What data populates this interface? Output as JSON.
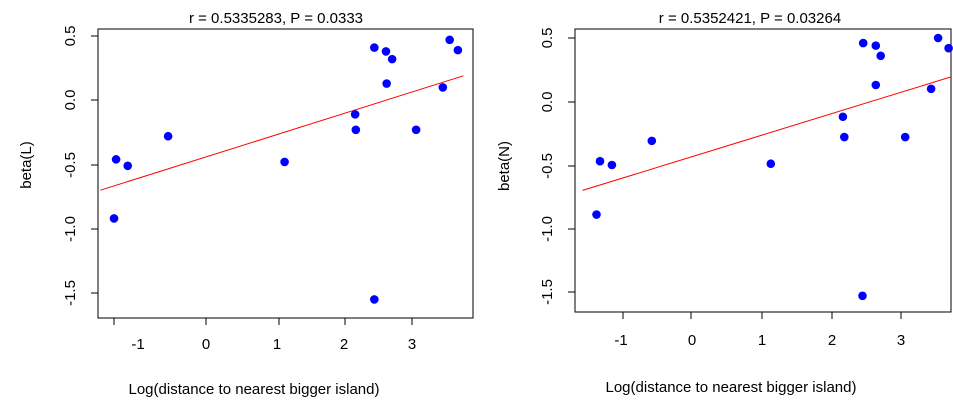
{
  "chart_data": [
    {
      "type": "scatter",
      "title": "r = 0.5335283, P = 0.0333",
      "xlabel": "Log(distance to nearest bigger island)",
      "ylabel": "beta(L)",
      "xlim": [
        -1.55,
        3.75
      ],
      "ylim": [
        -1.65,
        0.55
      ],
      "xticks": [
        "-1",
        "0",
        "1",
        "2",
        "3"
      ],
      "yticks": [
        "-1.5",
        "-1.0",
        "-0.5",
        "0.0",
        "0.5"
      ],
      "points": [
        {
          "x": -1.35,
          "y": -0.92
        },
        {
          "x": -1.32,
          "y": -0.46
        },
        {
          "x": -1.15,
          "y": -0.51
        },
        {
          "x": -0.56,
          "y": -0.28
        },
        {
          "x": 1.14,
          "y": -0.48
        },
        {
          "x": 2.17,
          "y": -0.11
        },
        {
          "x": 2.18,
          "y": -0.23
        },
        {
          "x": 2.45,
          "y": 0.41
        },
        {
          "x": 2.45,
          "y": -1.55
        },
        {
          "x": 2.62,
          "y": 0.38
        },
        {
          "x": 2.63,
          "y": 0.13
        },
        {
          "x": 2.71,
          "y": 0.32
        },
        {
          "x": 3.06,
          "y": -0.23
        },
        {
          "x": 3.45,
          "y": 0.1
        },
        {
          "x": 3.55,
          "y": 0.47
        },
        {
          "x": 3.67,
          "y": 0.39
        }
      ],
      "fit": {
        "x": [
          -1.55,
          3.75
        ],
        "y": [
          -0.7,
          0.19
        ],
        "color": "#ff0000"
      },
      "point_color": "#0000ff"
    },
    {
      "type": "scatter",
      "title": "r = 0.5352421, P = 0.03264",
      "xlabel": "Log(distance to nearest bigger island)",
      "ylabel": "beta(N)",
      "xlim": [
        -1.55,
        3.75
      ],
      "ylim": [
        -1.65,
        0.55
      ],
      "xticks": [
        "-1",
        "0",
        "1",
        "2",
        "3"
      ],
      "yticks": [
        "-1.5",
        "-1.0",
        "-0.5",
        "0.0",
        "0.5"
      ],
      "points": [
        {
          "x": -1.35,
          "y": -0.89
        },
        {
          "x": -1.3,
          "y": -0.47
        },
        {
          "x": -1.13,
          "y": -0.5
        },
        {
          "x": -0.56,
          "y": -0.31
        },
        {
          "x": 1.14,
          "y": -0.49
        },
        {
          "x": 2.17,
          "y": -0.12
        },
        {
          "x": 2.19,
          "y": -0.28
        },
        {
          "x": 2.46,
          "y": 0.46
        },
        {
          "x": 2.45,
          "y": -1.53
        },
        {
          "x": 2.64,
          "y": 0.44
        },
        {
          "x": 2.64,
          "y": 0.13
        },
        {
          "x": 2.71,
          "y": 0.36
        },
        {
          "x": 3.06,
          "y": -0.28
        },
        {
          "x": 3.43,
          "y": 0.1
        },
        {
          "x": 3.53,
          "y": 0.5
        },
        {
          "x": 3.68,
          "y": 0.42
        }
      ],
      "fit": {
        "x": [
          -1.55,
          3.75
        ],
        "y": [
          -0.7,
          0.2
        ],
        "color": "#ff0000"
      },
      "point_color": "#0000ff"
    }
  ]
}
